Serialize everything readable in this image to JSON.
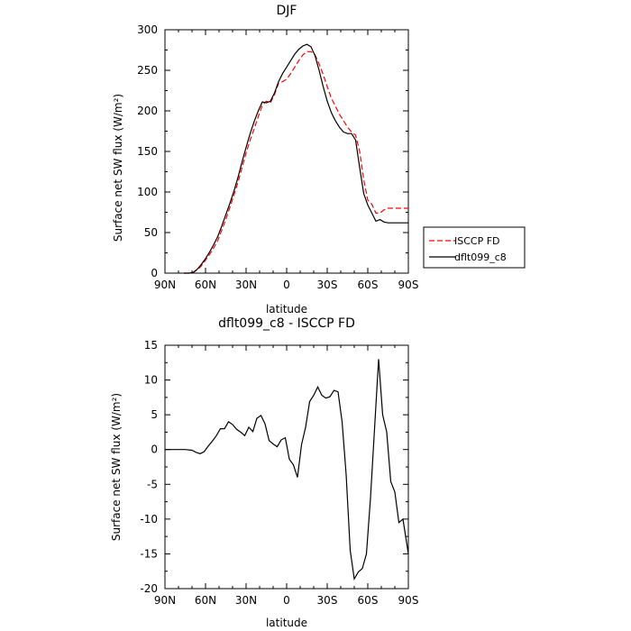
{
  "chart_data": [
    {
      "type": "line",
      "title": "DJF",
      "xlabel": "latitude",
      "ylabel": "Surface net SW flux (W/m²)",
      "xlim": [
        90,
        -90
      ],
      "ylim": [
        0,
        300
      ],
      "xticks": [
        90,
        60,
        30,
        0,
        -30,
        -60,
        -90
      ],
      "xtick_labels": [
        "90N",
        "60N",
        "30N",
        "0",
        "30S",
        "60S",
        "90S"
      ],
      "yticks": [
        0,
        50,
        100,
        150,
        200,
        250,
        300
      ],
      "grid": false,
      "legend_position": "outside-right",
      "series": [
        {
          "name": "ISCCP FD",
          "color": "#ff0000",
          "dash": "dashed",
          "x": [
            76,
            72,
            69,
            66,
            63,
            60,
            57,
            54,
            51,
            48,
            45,
            42,
            39,
            36,
            33,
            30,
            27,
            24,
            21,
            18,
            15,
            12,
            9,
            6,
            3,
            0,
            -3,
            -6,
            -9,
            -12,
            -15,
            -18,
            -21,
            -24,
            -27,
            -30,
            -33,
            -36,
            -39,
            -42,
            -45,
            -48,
            -51,
            -54,
            -57,
            -60,
            -63,
            -66,
            -69,
            -72,
            -75,
            -78,
            -81,
            -84,
            -87,
            -90
          ],
          "y": [
            0,
            0,
            1,
            4,
            9,
            16,
            23,
            31,
            40,
            53,
            66,
            81,
            96,
            112,
            130,
            148,
            164,
            178,
            193,
            207,
            212,
            210,
            220,
            234,
            236,
            239,
            246,
            254,
            262,
            269,
            273,
            273,
            269,
            258,
            245,
            230,
            216,
            206,
            196,
            188,
            180,
            174,
            170,
            150,
            115,
            90,
            85,
            74,
            74,
            78,
            80,
            80,
            80,
            80,
            80,
            80
          ]
        },
        {
          "name": "dflt099_c8",
          "color": "#000000",
          "dash": "solid",
          "x": [
            76,
            72,
            69,
            66,
            63,
            60,
            57,
            54,
            51,
            48,
            45,
            42,
            39,
            36,
            33,
            30,
            27,
            24,
            21,
            18,
            15,
            12,
            9,
            6,
            3,
            0,
            -3,
            -6,
            -9,
            -12,
            -15,
            -18,
            -21,
            -24,
            -27,
            -30,
            -33,
            -36,
            -39,
            -42,
            -45,
            -48,
            -51,
            -54,
            -57,
            -60,
            -63,
            -66,
            -69,
            -72,
            -75,
            -78,
            -81,
            -84,
            -87,
            -90
          ],
          "y": [
            0,
            0,
            1,
            5,
            11,
            18,
            26,
            35,
            45,
            58,
            72,
            86,
            101,
            118,
            137,
            155,
            172,
            187,
            200,
            211,
            210,
            212,
            222,
            236,
            246,
            254,
            262,
            270,
            276,
            280,
            282,
            279,
            268,
            250,
            230,
            212,
            198,
            188,
            180,
            174,
            172,
            172,
            164,
            130,
            98,
            84,
            74,
            64,
            66,
            63,
            62,
            62,
            62,
            62,
            62,
            62
          ]
        }
      ]
    },
    {
      "type": "line",
      "title": "dflt099_c8 - ISCCP FD",
      "xlabel": "latitude",
      "ylabel": "Surface net SW flux (W/m²)",
      "xlim": [
        90,
        -90
      ],
      "ylim": [
        -20,
        15
      ],
      "xticks": [
        90,
        60,
        30,
        0,
        -30,
        -60,
        -90
      ],
      "xtick_labels": [
        "90N",
        "60N",
        "30N",
        "0",
        "30S",
        "60S",
        "90S"
      ],
      "yticks": [
        -20,
        -15,
        -10,
        -5,
        0,
        5,
        10,
        15
      ],
      "grid": false,
      "series": [
        {
          "color": "#000000",
          "dash": "solid",
          "x": [
            90,
            85,
            80,
            75,
            70,
            67,
            64,
            61,
            58,
            55,
            52,
            49,
            46,
            43,
            40,
            37,
            34,
            31,
            28,
            25,
            22,
            19,
            16,
            13,
            10,
            7,
            4,
            1,
            -2,
            -5,
            -8,
            -11,
            -14,
            -17,
            -20,
            -23,
            -26,
            -29,
            -32,
            -35,
            -38,
            -41,
            -44,
            -47,
            -50,
            -53,
            -56,
            -59,
            -62,
            -65,
            -68,
            -71,
            -74,
            -77,
            -80,
            -83,
            -86,
            -90
          ],
          "y": [
            0,
            0,
            0,
            0,
            -0.1,
            -0.4,
            -0.6,
            -0.3,
            0.5,
            1.2,
            2.0,
            3.0,
            3.0,
            4.0,
            3.6,
            2.9,
            2.5,
            2.0,
            3.2,
            2.6,
            4.5,
            4.9,
            3.7,
            1.3,
            0.8,
            0.4,
            1.4,
            1.7,
            -1.4,
            -2.2,
            -4.0,
            0.7,
            3.2,
            6.9,
            7.8,
            9.0,
            7.8,
            7.4,
            7.6,
            8.5,
            8.3,
            4.0,
            -3.6,
            -14.5,
            -18.6,
            -17.6,
            -17.1,
            -15.0,
            -7.0,
            3.0,
            13.0,
            5.0,
            2.5,
            -4.6,
            -6.1,
            -10.5,
            -10.0,
            -15.0
          ]
        }
      ]
    }
  ]
}
